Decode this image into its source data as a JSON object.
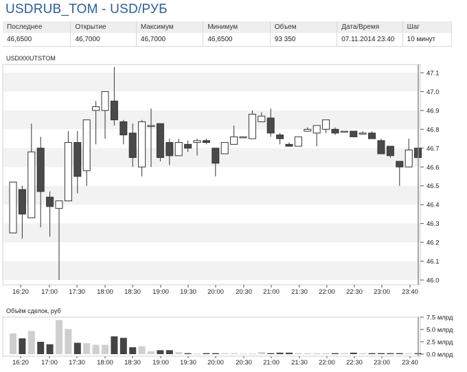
{
  "header": {
    "title": "USDRUB_TOM - USD/РУБ"
  },
  "quote": {
    "columns": [
      "Последнее",
      "Открытие",
      "Максимум",
      "Минимум",
      "Объем",
      "Дата/Время",
      "Шаг"
    ],
    "values": [
      "46,6500",
      "46,7000",
      "46,7000",
      "46,6500",
      "93 350",
      "07.11.2014 23:40",
      "10 минут"
    ]
  },
  "main_chart": {
    "label": "USD000UTSTOM"
  },
  "volume_chart": {
    "label": "Объём сделок, руб"
  },
  "colors": {
    "up": "#ffffff",
    "down": "#4a4a4a",
    "vol_up": "#cfcfcf",
    "vol_down": "#444444",
    "band": "#f2f2f2"
  },
  "chart_data": [
    {
      "type": "candlestick",
      "x_ticks": [
        "16:20",
        "17:00",
        "17:30",
        "18:00",
        "18:30",
        "19:00",
        "19:30",
        "20:00",
        "20:30",
        "21:00",
        "21:30",
        "22:00",
        "22:30",
        "23:00",
        "23:40"
      ],
      "y_ticks": [
        "46.0",
        "46.1",
        "46.2",
        "46.3",
        "46.4",
        "46.5",
        "46.6",
        "46.7",
        "46.8",
        "46.9",
        "47.0",
        "47.1"
      ],
      "ylim": [
        46.0,
        47.1
      ],
      "grid": true,
      "candles": [
        {
          "o": 46.25,
          "h": 46.52,
          "l": 46.25,
          "c": 46.52
        },
        {
          "o": 46.48,
          "h": 46.5,
          "l": 46.22,
          "c": 46.35
        },
        {
          "o": 46.33,
          "h": 46.83,
          "l": 46.33,
          "c": 46.68
        },
        {
          "o": 46.7,
          "h": 46.76,
          "l": 46.28,
          "c": 46.47
        },
        {
          "o": 46.44,
          "h": 46.47,
          "l": 46.23,
          "c": 46.39
        },
        {
          "o": 46.38,
          "h": 46.42,
          "l": 46.0,
          "c": 46.42
        },
        {
          "o": 46.42,
          "h": 46.79,
          "l": 46.42,
          "c": 46.73
        },
        {
          "o": 46.73,
          "h": 46.79,
          "l": 46.46,
          "c": 46.55
        },
        {
          "o": 46.58,
          "h": 46.85,
          "l": 46.5,
          "c": 46.85
        },
        {
          "o": 46.9,
          "h": 46.95,
          "l": 46.72,
          "c": 46.92
        },
        {
          "o": 46.9,
          "h": 47.0,
          "l": 46.75,
          "c": 47.0
        },
        {
          "o": 46.95,
          "h": 47.13,
          "l": 46.82,
          "c": 46.85
        },
        {
          "o": 46.84,
          "h": 46.85,
          "l": 46.72,
          "c": 46.77
        },
        {
          "o": 46.78,
          "h": 46.83,
          "l": 46.6,
          "c": 46.65
        },
        {
          "o": 46.6,
          "h": 46.85,
          "l": 46.55,
          "c": 46.84
        },
        {
          "o": 46.82,
          "h": 46.91,
          "l": 46.6,
          "c": 46.82
        },
        {
          "o": 46.83,
          "h": 46.83,
          "l": 46.63,
          "c": 46.65
        },
        {
          "o": 46.73,
          "h": 46.75,
          "l": 46.61,
          "c": 46.66
        },
        {
          "o": 46.66,
          "h": 46.75,
          "l": 46.66,
          "c": 46.73
        },
        {
          "o": 46.72,
          "h": 46.74,
          "l": 46.68,
          "c": 46.7
        },
        {
          "o": 46.73,
          "h": 46.75,
          "l": 46.66,
          "c": 46.74
        },
        {
          "o": 46.74,
          "h": 46.75,
          "l": 46.72,
          "c": 46.73
        },
        {
          "o": 46.7,
          "h": 46.7,
          "l": 46.55,
          "c": 46.62
        },
        {
          "o": 46.67,
          "h": 46.73,
          "l": 46.67,
          "c": 46.73
        },
        {
          "o": 46.72,
          "h": 46.82,
          "l": 46.72,
          "c": 46.76
        },
        {
          "o": 46.76,
          "h": 46.76,
          "l": 46.76,
          "c": 46.76
        },
        {
          "o": 46.75,
          "h": 46.9,
          "l": 46.75,
          "c": 46.88
        },
        {
          "o": 46.84,
          "h": 46.89,
          "l": 46.84,
          "c": 46.87
        },
        {
          "o": 46.86,
          "h": 46.91,
          "l": 46.76,
          "c": 46.78
        },
        {
          "o": 46.77,
          "h": 46.78,
          "l": 46.72,
          "c": 46.75
        },
        {
          "o": 46.72,
          "h": 46.73,
          "l": 46.71,
          "c": 46.71
        },
        {
          "o": 46.71,
          "h": 46.76,
          "l": 46.71,
          "c": 46.76
        },
        {
          "o": 46.79,
          "h": 46.81,
          "l": 46.79,
          "c": 46.8
        },
        {
          "o": 46.78,
          "h": 46.82,
          "l": 46.71,
          "c": 46.82
        },
        {
          "o": 46.8,
          "h": 46.85,
          "l": 46.78,
          "c": 46.85
        },
        {
          "o": 46.8,
          "h": 46.81,
          "l": 46.77,
          "c": 46.78
        },
        {
          "o": 46.79,
          "h": 46.79,
          "l": 46.79,
          "c": 46.79
        },
        {
          "o": 46.79,
          "h": 46.79,
          "l": 46.76,
          "c": 46.76
        },
        {
          "o": 46.78,
          "h": 46.79,
          "l": 46.78,
          "c": 46.78
        },
        {
          "o": 46.78,
          "h": 46.79,
          "l": 46.75,
          "c": 46.75
        },
        {
          "o": 46.74,
          "h": 46.75,
          "l": 46.67,
          "c": 46.67
        },
        {
          "o": 46.71,
          "h": 46.71,
          "l": 46.65,
          "c": 46.66
        },
        {
          "o": 46.63,
          "h": 46.63,
          "l": 46.5,
          "c": 46.6
        },
        {
          "o": 46.6,
          "h": 46.75,
          "l": 46.6,
          "c": 46.69
        },
        {
          "o": 46.7,
          "h": 46.7,
          "l": 46.65,
          "c": 46.65
        }
      ]
    },
    {
      "type": "bar",
      "title": "Объём сделок, руб",
      "y_ticks": [
        "0.0 млрд",
        "2.5 млрд",
        "5.0 млрд",
        "7.5 млрд"
      ],
      "ylim": [
        0,
        7.5
      ],
      "values": [
        4.2,
        3.2,
        4.7,
        2.5,
        2.0,
        6.9,
        5.1,
        2.3,
        2.2,
        1.9,
        1.9,
        3.6,
        3.3,
        1.4,
        1.6,
        0.6,
        0.8,
        0.8,
        0.4,
        0.2,
        0.1,
        0.2,
        0.2,
        0.2,
        0.2,
        0.1,
        0.1,
        0.4,
        0.2,
        0.3,
        0.3,
        0.2,
        0.2,
        0.2,
        0.2,
        0.2,
        0.2,
        0.3,
        0.2,
        0.2,
        0.2,
        0.2,
        0.2,
        0.2,
        0.2
      ]
    }
  ]
}
